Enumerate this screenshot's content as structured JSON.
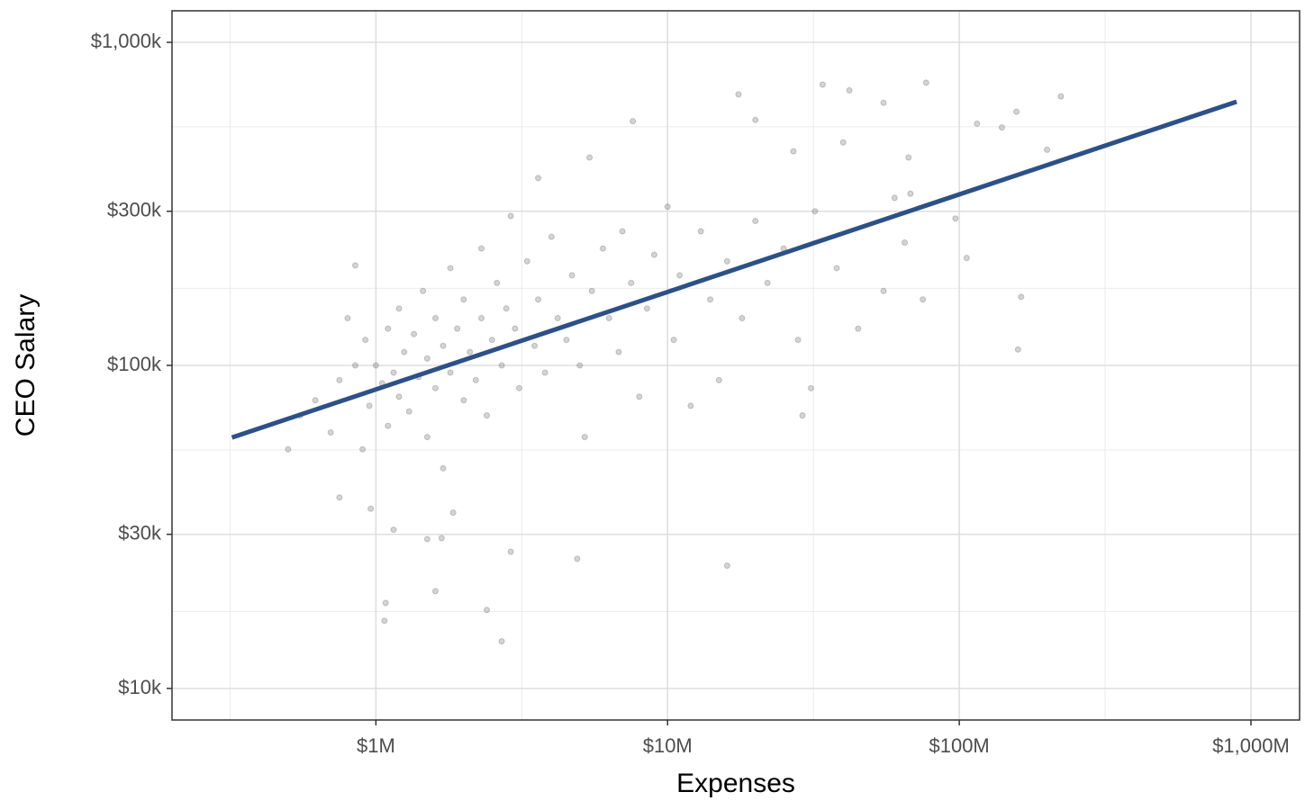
{
  "chart_data": {
    "type": "scatter",
    "x_label": "Expenses",
    "y_label": "CEO Salary",
    "log_x": true,
    "log_y": true,
    "grid": true,
    "xlim": [
      200000,
      1468000000
    ],
    "ylim": [
      7987,
      1252000
    ],
    "xticks": [
      {
        "value": 1000000,
        "label": "$1M"
      },
      {
        "value": 10000000,
        "label": "$10M"
      },
      {
        "value": 100000000,
        "label": "$100M"
      },
      {
        "value": 1000000000,
        "label": "$1,000M"
      }
    ],
    "yticks": [
      {
        "value": 10000,
        "label": "$10k"
      },
      {
        "value": 30000,
        "label": "$30k"
      },
      {
        "value": 100000,
        "label": "$100k"
      },
      {
        "value": 300000,
        "label": "$300k"
      },
      {
        "value": 1000000,
        "label": "$1,000k"
      }
    ],
    "series": [
      {
        "type": "scatter",
        "color": "#555555",
        "x": [
          17500000,
          34000000,
          42000000,
          77000000,
          223000000,
          157000000,
          115000000,
          140000000,
          7600000,
          20000000,
          55000000,
          16000000,
          2700000,
          1070000,
          1080000,
          2400000,
          1600000,
          4900000,
          2900000,
          159000000,
          163000000,
          106000000,
          29000000,
          31000000,
          3600000,
          5400000,
          1150000,
          1500000,
          1680000,
          1840000,
          750000,
          960000,
          500000,
          850000,
          200000000,
          97000000,
          68000000,
          67000000,
          40000000,
          27000000,
          550000,
          620000,
          700000,
          750000,
          800000,
          850000,
          900000,
          920000,
          950000,
          1000000,
          1050000,
          1100000,
          1100000,
          1150000,
          1200000,
          1200000,
          1250000,
          1300000,
          1350000,
          1400000,
          1450000,
          1500000,
          1500000,
          1600000,
          1600000,
          1700000,
          1700000,
          1800000,
          1800000,
          1900000,
          2000000,
          2000000,
          2100000,
          2200000,
          2300000,
          2300000,
          2400000,
          2500000,
          2600000,
          2700000,
          2800000,
          2900000,
          3000000,
          3100000,
          3300000,
          3500000,
          3600000,
          3800000,
          4000000,
          4200000,
          4500000,
          4700000,
          5000000,
          5200000,
          5500000,
          6000000,
          6300000,
          6800000,
          7000000,
          7500000,
          8000000,
          8500000,
          9000000,
          10000000,
          10500000,
          11000000,
          12000000,
          13000000,
          14000000,
          15000000,
          16000000,
          18000000,
          20000000,
          22000000,
          25000000,
          28000000,
          32000000,
          38000000,
          45000000,
          55000000,
          65000000,
          75000000,
          60000000
        ],
        "values": [
          690000,
          740000,
          710000,
          750000,
          680000,
          610000,
          560000,
          545000,
          570000,
          575000,
          650000,
          24000,
          14000,
          16200,
          18400,
          17500,
          20000,
          25200,
          26500,
          112000,
          163000,
          215000,
          70000,
          85000,
          380000,
          440000,
          31000,
          29000,
          29200,
          35000,
          39000,
          36000,
          55000,
          204000,
          465000,
          285000,
          340000,
          440000,
          490000,
          460000,
          70000,
          78000,
          62000,
          90000,
          140000,
          100000,
          55000,
          120000,
          75000,
          100000,
          88000,
          130000,
          65000,
          95000,
          150000,
          80000,
          110000,
          72000,
          125000,
          92000,
          170000,
          105000,
          60000,
          140000,
          85000,
          115000,
          48000,
          200000,
          95000,
          130000,
          78000,
          160000,
          110000,
          90000,
          230000,
          140000,
          70000,
          120000,
          180000,
          100000,
          150000,
          290000,
          130000,
          85000,
          210000,
          115000,
          160000,
          95000,
          250000,
          140000,
          120000,
          190000,
          100000,
          60000,
          170000,
          230000,
          140000,
          110000,
          260000,
          180000,
          80000,
          150000,
          220000,
          310000,
          120000,
          190000,
          75000,
          260000,
          160000,
          90000,
          210000,
          140000,
          280000,
          180000,
          230000,
          120000,
          300000,
          200000,
          130000,
          170000,
          240000,
          160000,
          330000
        ]
      },
      {
        "type": "line",
        "color": "#2c5088",
        "x": [
          321000,
          893000000
        ],
        "values": [
          59800,
          655000
        ]
      }
    ]
  }
}
